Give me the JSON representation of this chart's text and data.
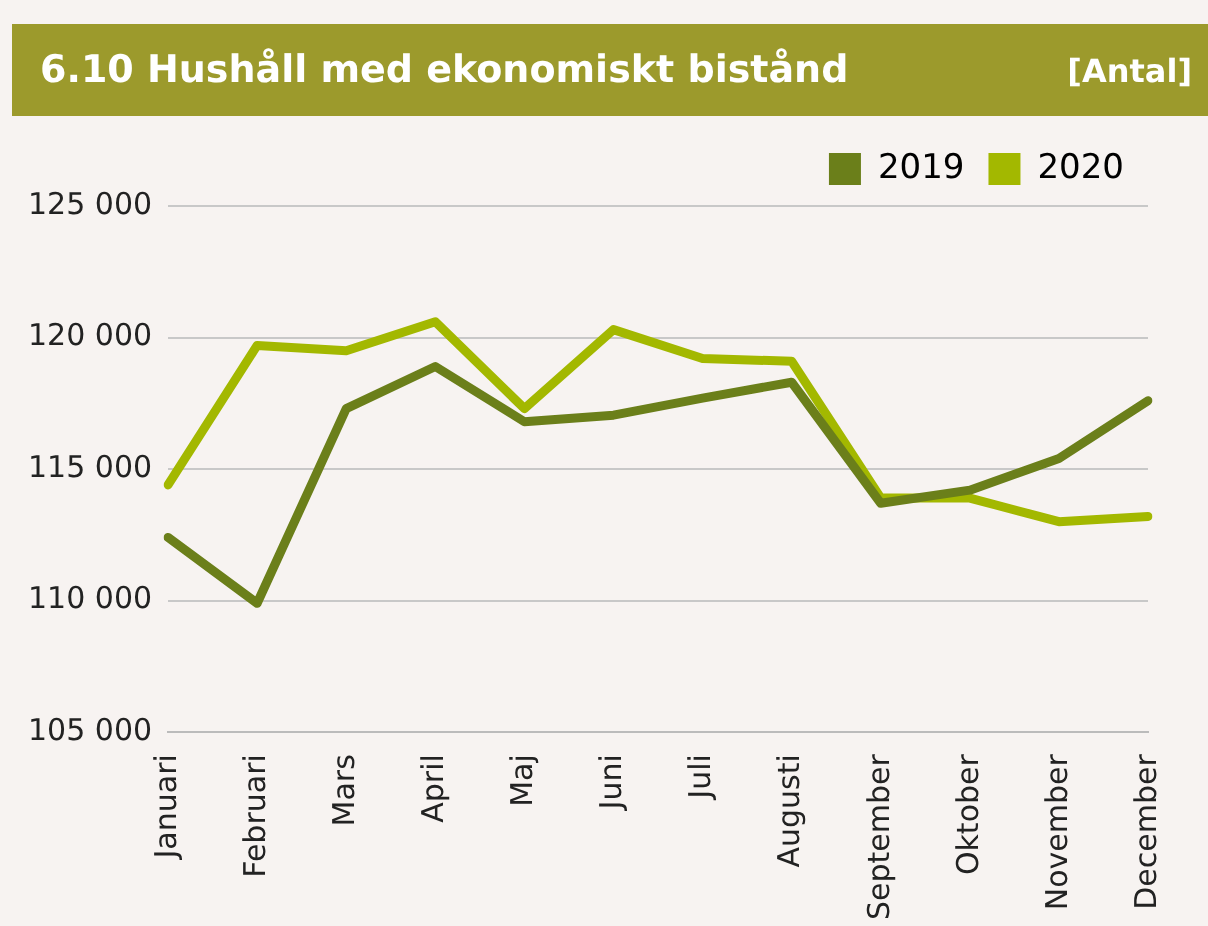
{
  "chart_data": {
    "type": "line",
    "title": "6.10  Hushåll med ekonomiskt bistånd",
    "subtitle": "[Antal]",
    "categories": [
      "Januari",
      "Februari",
      "Mars",
      "April",
      "Maj",
      "Juni",
      "Juli",
      "Augusti",
      "September",
      "Oktober",
      "November",
      "December"
    ],
    "series": [
      {
        "name": "2019",
        "color": "#6b7f1a",
        "values": [
          112400,
          109900,
          117300,
          118900,
          116800,
          117050,
          117700,
          118300,
          113700,
          114200,
          115400,
          117600
        ]
      },
      {
        "name": "2020",
        "color": "#a3b800",
        "values": [
          114400,
          119700,
          119500,
          120600,
          117300,
          120300,
          119200,
          119100,
          113900,
          113900,
          113000,
          113200
        ]
      }
    ],
    "ylim": [
      105000,
      125000
    ],
    "yticks": [
      {
        "value": 105000,
        "label": "105 000"
      },
      {
        "value": 110000,
        "label": "110 000"
      },
      {
        "value": 115000,
        "label": "115 000"
      },
      {
        "value": 120000,
        "label": "120 000"
      },
      {
        "value": 125000,
        "label": "125 000"
      }
    ],
    "grid": "y",
    "legend": "top right",
    "marker": "none",
    "line_style": "solid"
  }
}
